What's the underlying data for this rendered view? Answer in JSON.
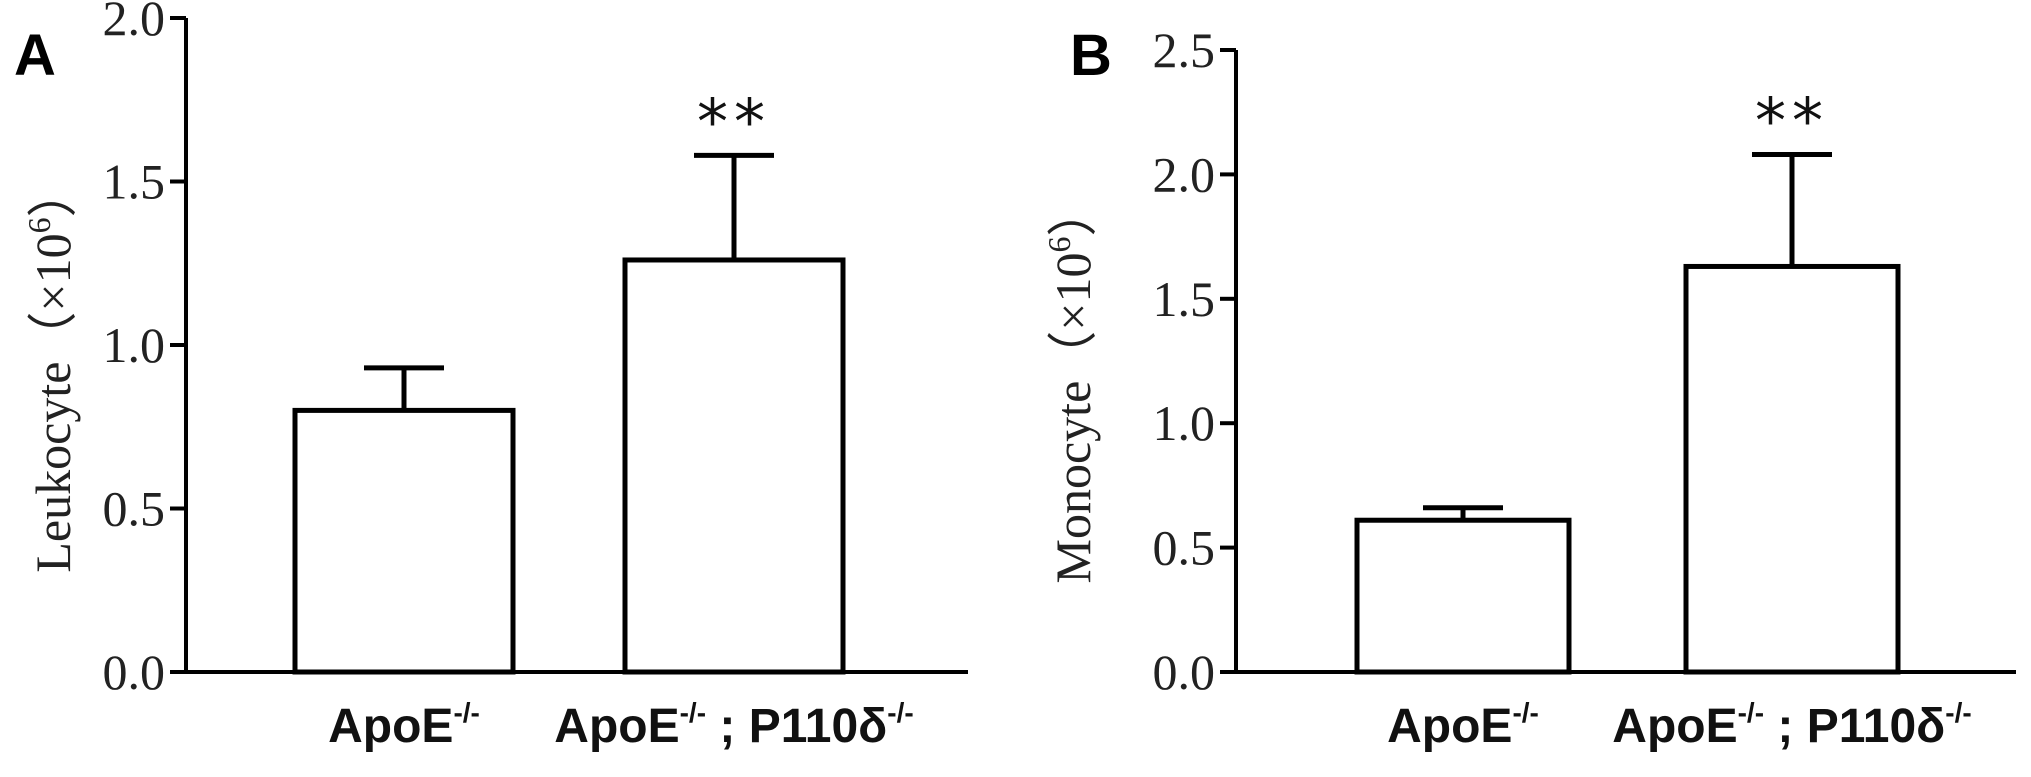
{
  "panels": [
    {
      "label": "A"
    },
    {
      "label": "B"
    }
  ],
  "chart_data": [
    {
      "type": "bar",
      "panel": "A",
      "categories": [
        "ApoE-/-",
        "ApoE-/- ; P110δ-/-"
      ],
      "category_parts": [
        {
          "base": "ApoE",
          "sup": "-/-",
          "sep": "",
          "base2": "",
          "sup2": ""
        },
        {
          "base": "ApoE",
          "sup": "-/-",
          "sep": "; ",
          "base2": "P110δ",
          "sup2": "-/-"
        }
      ],
      "values": [
        0.8,
        1.26
      ],
      "errors": [
        0.13,
        0.32
      ],
      "significance": [
        "",
        "**"
      ],
      "ylabel": "Leukocyte（×10⁶）",
      "ylabel_parts": {
        "text": "Leukocyte（×10",
        "sup": "6",
        "close": "）"
      },
      "ylim": [
        0,
        2.0
      ],
      "yticks": [
        0.0,
        0.5,
        1.0,
        1.5,
        2.0
      ],
      "ytick_labels": [
        "0.0",
        "0.5",
        "1.0",
        "1.5",
        "2.0"
      ],
      "grid": false
    },
    {
      "type": "bar",
      "panel": "B",
      "categories": [
        "ApoE-/-",
        "ApoE-/- ; P110δ-/-"
      ],
      "category_parts": [
        {
          "base": "ApoE",
          "sup": "-/-",
          "sep": "",
          "base2": "",
          "sup2": ""
        },
        {
          "base": "ApoE",
          "sup": "-/-",
          "sep": "; ",
          "base2": "P110δ",
          "sup2": "-/-"
        }
      ],
      "values": [
        0.61,
        1.63
      ],
      "errors": [
        0.05,
        0.45
      ],
      "significance": [
        "",
        "**"
      ],
      "ylabel": "Monocyte（×10⁶）",
      "ylabel_parts": {
        "text": "Monocyte（×10",
        "sup": "6",
        "close": "）"
      },
      "ylim": [
        0,
        2.5
      ],
      "yticks": [
        0.0,
        0.5,
        1.0,
        1.5,
        2.0,
        2.5
      ],
      "ytick_labels": [
        "0.0",
        "0.5",
        "1.0",
        "1.5",
        "2.0",
        "2.5"
      ],
      "grid": false
    }
  ]
}
